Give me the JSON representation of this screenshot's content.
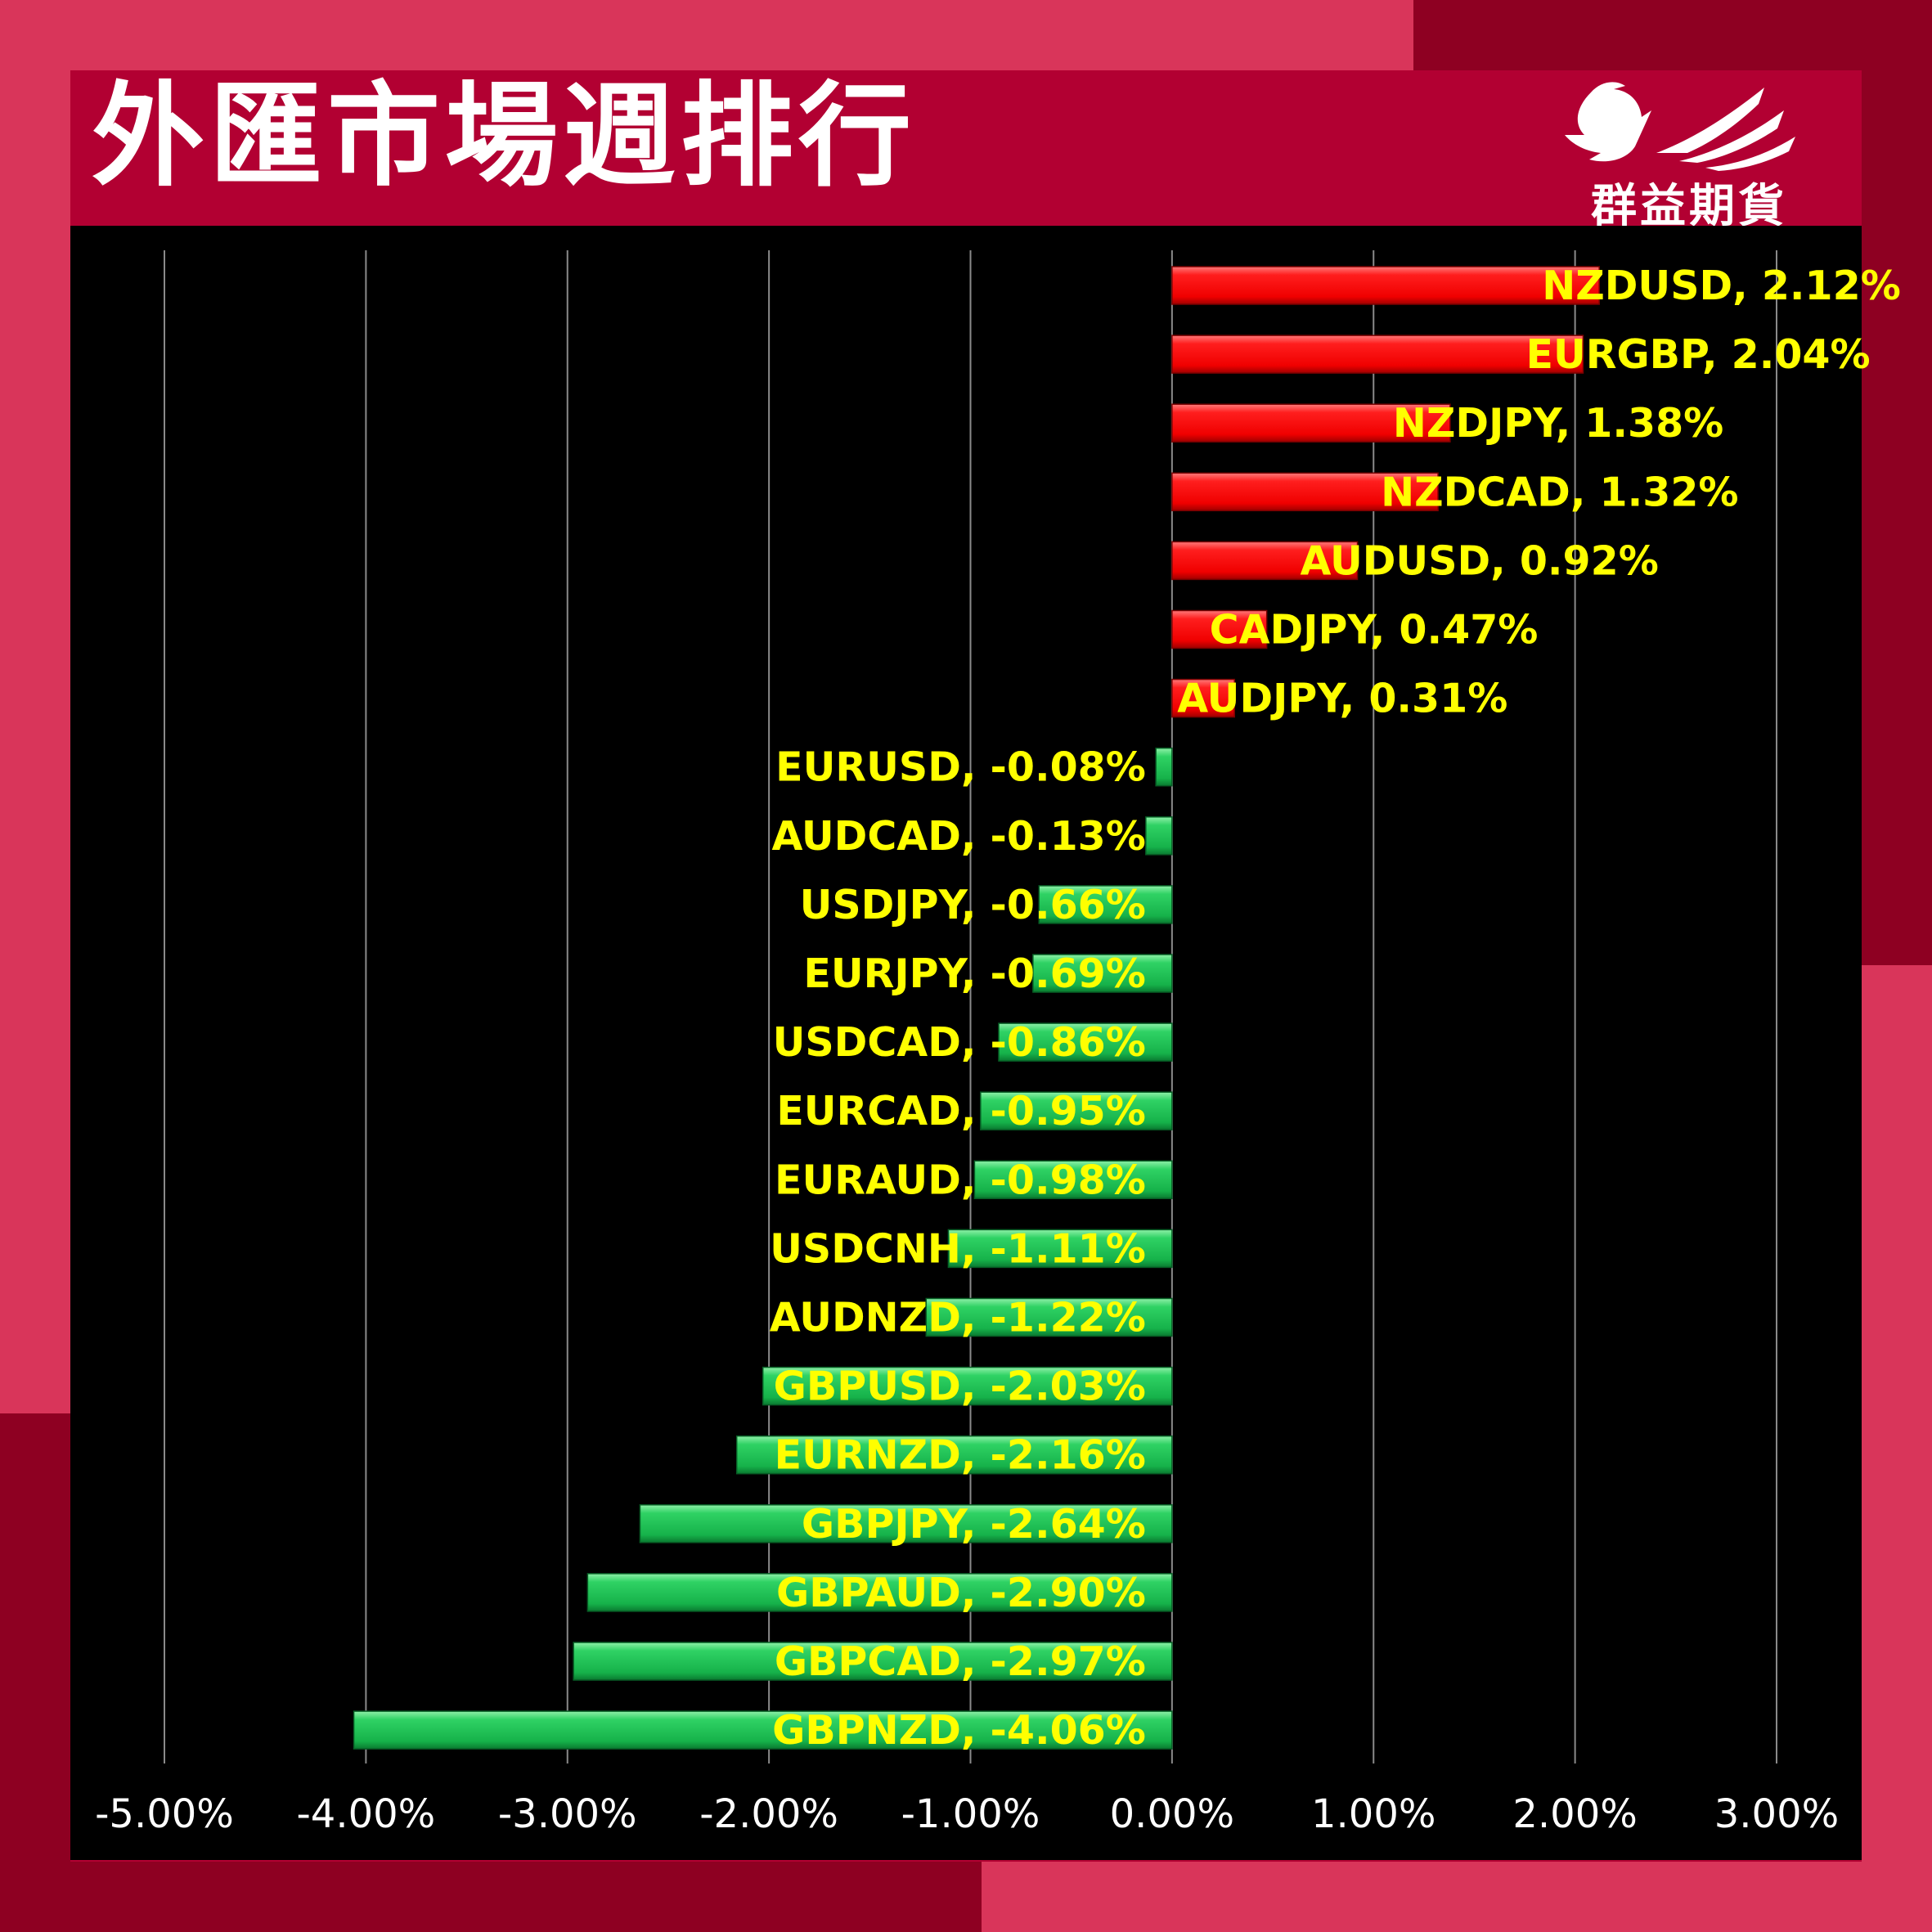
{
  "header": {
    "title": "外匯市場週排行",
    "brand": "群益期貨"
  },
  "colors": {
    "positive": "#ff1a1a",
    "negative": "#19b84e",
    "label": "#ffff00",
    "axis_label": "#ffffff",
    "gridline": "#8a8a8a"
  },
  "chart_data": {
    "type": "bar",
    "orientation": "horizontal",
    "title": "外匯市場週排行",
    "xlabel": "",
    "ylabel": "",
    "xlim": [
      -5,
      3
    ],
    "x_ticks": [
      "-5.00%",
      "-4.00%",
      "-3.00%",
      "-2.00%",
      "-1.00%",
      "0.00%",
      "1.00%",
      "2.00%",
      "3.00%"
    ],
    "grid": true,
    "legend": "none",
    "categories": [
      "NZDUSD",
      "EURGBP",
      "NZDJPY",
      "NZDCAD",
      "AUDUSD",
      "CADJPY",
      "AUDJPY",
      "EURUSD",
      "AUDCAD",
      "USDJPY",
      "EURJPY",
      "USDCAD",
      "EURCAD",
      "EURAUD",
      "USDCNH",
      "AUDNZD",
      "GBPUSD",
      "EURNZD",
      "GBPJPY",
      "GBPAUD",
      "GBPCAD",
      "GBPNZD"
    ],
    "values": [
      2.12,
      2.04,
      1.38,
      1.32,
      0.92,
      0.47,
      0.31,
      -0.08,
      -0.13,
      -0.66,
      -0.69,
      -0.86,
      -0.95,
      -0.98,
      -1.11,
      -1.22,
      -2.03,
      -2.16,
      -2.64,
      -2.9,
      -2.97,
      -4.06
    ],
    "data_labels": [
      "NZDUSD, 2.12%",
      "EURGBP, 2.04%",
      "NZDJPY, 1.38%",
      "NZDCAD, 1.32%",
      "AUDUSD, 0.92%",
      "CADJPY, 0.47%",
      "AUDJPY, 0.31%",
      "EURUSD, -0.08%",
      "AUDCAD, -0.13%",
      "USDJPY, -0.66%",
      "EURJPY, -0.69%",
      "USDCAD, -0.86%",
      "EURCAD, -0.95%",
      "EURAUD, -0.98%",
      "USDCNH, -1.11%",
      "AUDNZD, -1.22%",
      "GBPUSD, -2.03%",
      "EURNZD, -2.16%",
      "GBPJPY, -2.64%",
      "GBPAUD, -2.90%",
      "GBPCAD, -2.97%",
      "GBPNZD, -4.06%"
    ]
  }
}
